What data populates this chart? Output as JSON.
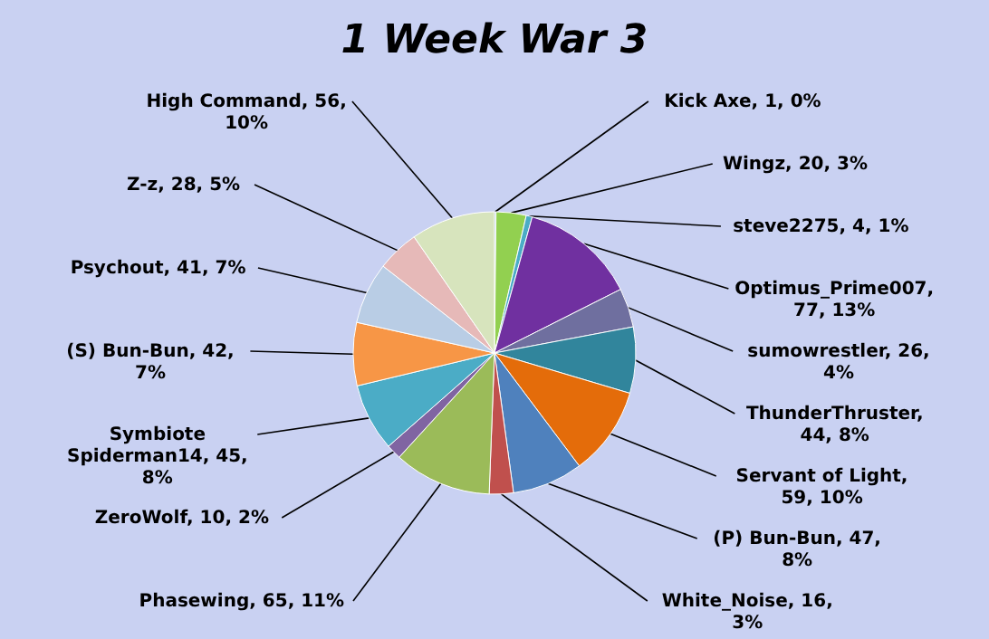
{
  "chart_data": {
    "type": "pie",
    "title": "1 Week War 3",
    "values": [
      1,
      20,
      4,
      77,
      26,
      44,
      59,
      47,
      16,
      65,
      10,
      45,
      42,
      41,
      28,
      56
    ],
    "colors": [
      "#4f81bd",
      "#92d050",
      "#4bacc6",
      "#7030a0",
      "#6f6f9f",
      "#31859c",
      "#e46c0a",
      "#4f81bd",
      "#c0504d",
      "#9bbb59",
      "#8064a2",
      "#4bacc6",
      "#f79646",
      "#b9cde5",
      "#e6b9b8",
      "#d7e4bd"
    ],
    "value_labels": [
      "Kick Axe, 1, 0%",
      "Wingz, 20, 3%",
      "steve2275, 4, 1%",
      "Optimus_Prime007, 77, 13%",
      "sumowrestler, 26, 4%",
      "ThunderThruster, 44, 8%",
      "Servant of Light, 59, 10%",
      "(P) Bun-Bun, 47, 8%",
      "White_Noise, 16, 3%",
      "Phasewing, 65, 11%",
      "ZeroWolf, 10, 2%",
      "Symbiote Spiderman14, 45, 8%",
      "(S) Bun-Bun, 42, 7%",
      "Psychout, 41, 7%",
      "Z-z, 28, 5%",
      "High Command, 56, 10%"
    ]
  }
}
